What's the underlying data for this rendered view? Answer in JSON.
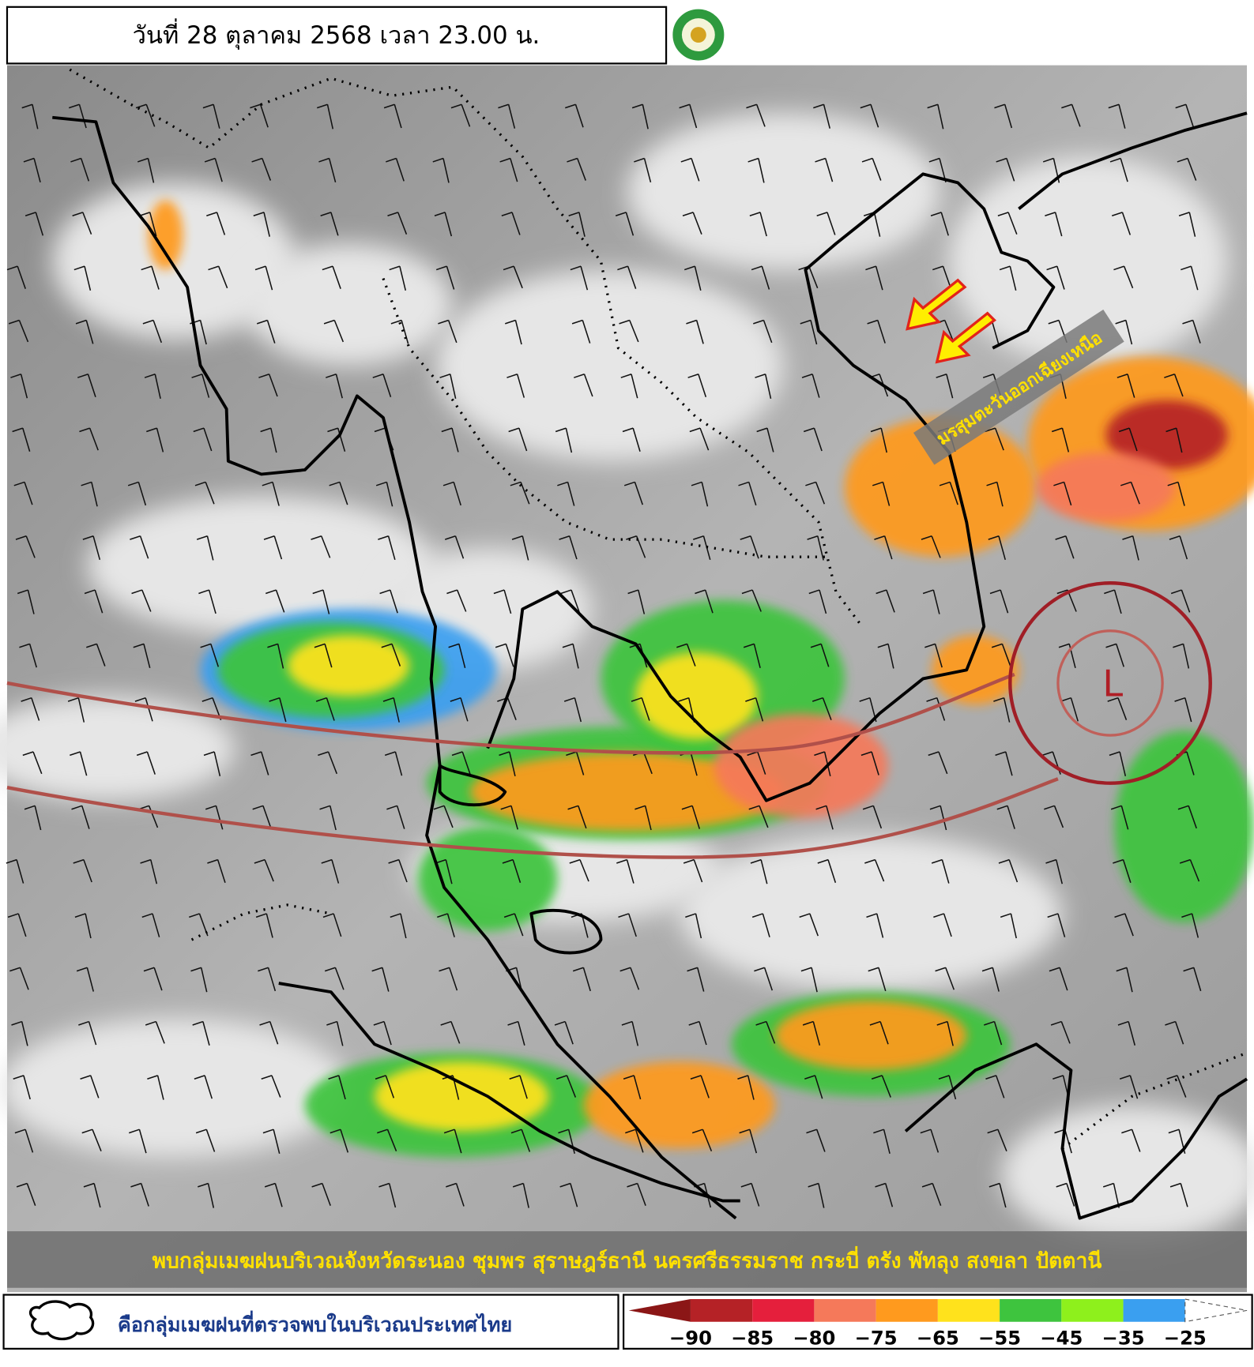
{
  "header": {
    "title": "วันที่ 28 ตุลาคม 2568 เวลา 23.00 น."
  },
  "annotations": {
    "monsoon": "มรสุมตะวันออกเฉียงเหนือ",
    "low": "L",
    "summary": "พบกลุ่มเมฆฝนบริเวณจังหวัดระนอง ชุมพร สุราษฎร์ธานี นครศรีธรรมราช กระบี่ ตรัง พัทลุง สงขลา ปัตตานี"
  },
  "legend": {
    "cloud_label": "คือกลุ่มเมฆฝนที่ตรวจพบในบริเวณประเทศไทย",
    "colors": [
      "#8b1616",
      "#b52226",
      "#e51f3c",
      "#f5795a",
      "#ff9a1e",
      "#ffe21c",
      "#3ec43e",
      "#8ef01c",
      "#3a9ff0",
      "#ffffff"
    ],
    "ticks": [
      "−90",
      "−85",
      "−80",
      "−75",
      "−65",
      "−55",
      "−45",
      "−35",
      "−25"
    ]
  }
}
